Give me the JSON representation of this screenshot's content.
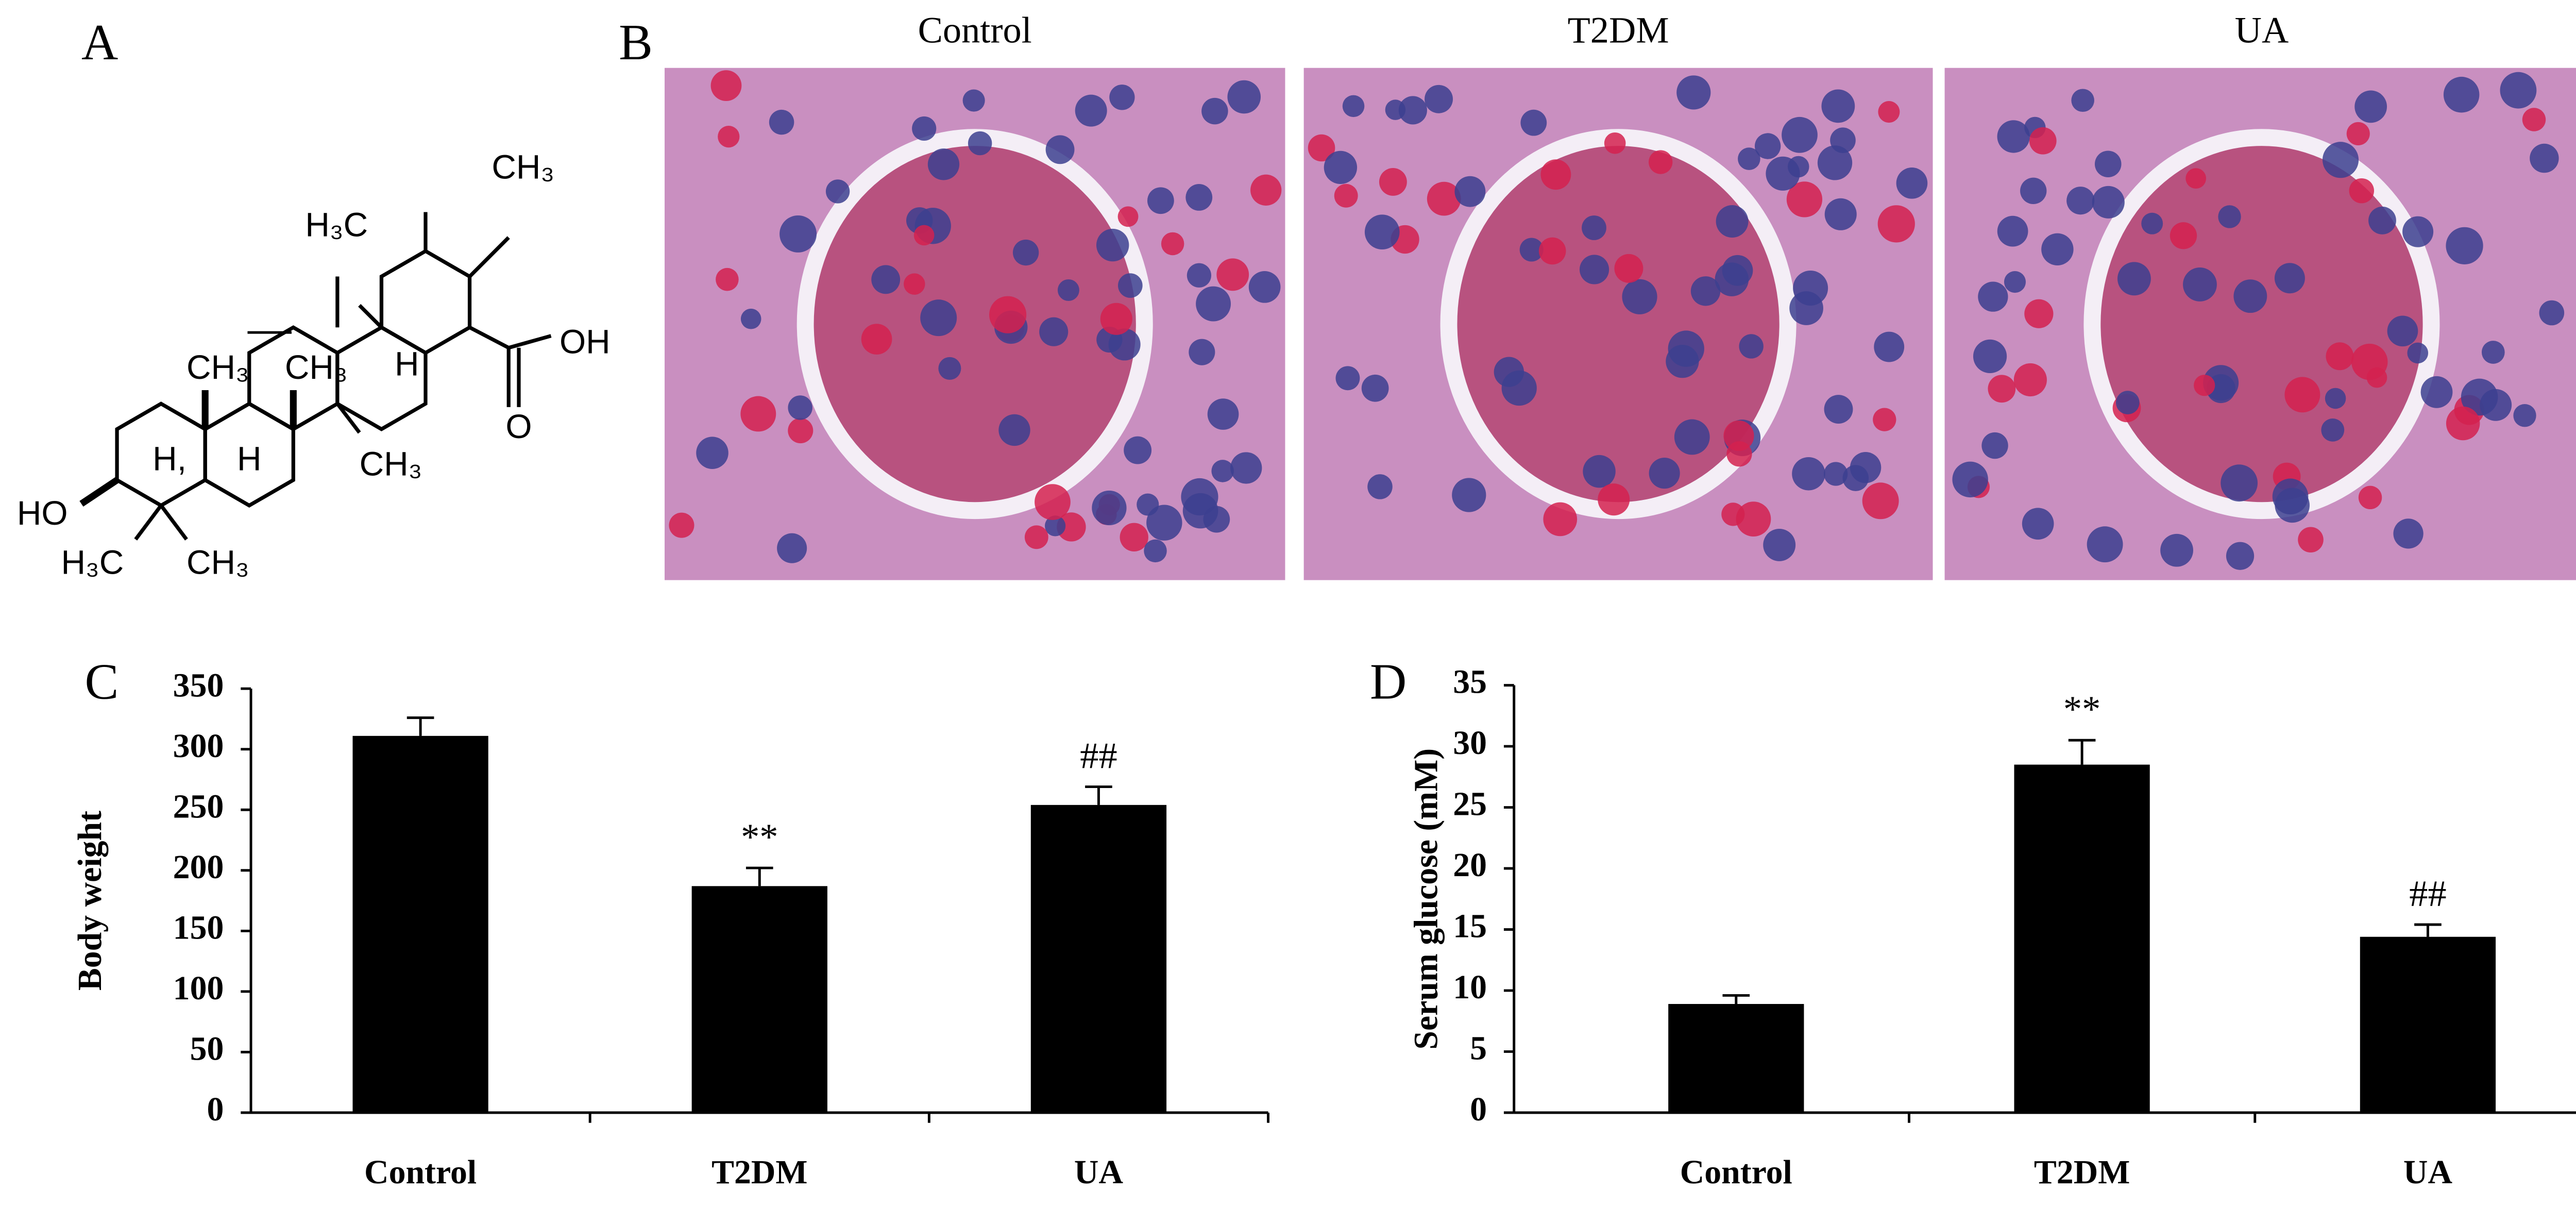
{
  "panels": {
    "A": {
      "letter": "A",
      "labels": [
        "CH₃",
        "H₃C",
        "H",
        "OH",
        "O",
        "CH₃",
        "CH₃",
        "H,",
        "H",
        "CH₃",
        "HO",
        "H₃C",
        "CH₃"
      ]
    },
    "B": {
      "letter": "B",
      "images": [
        {
          "title": "Control"
        },
        {
          "title": "T2DM"
        },
        {
          "title": "UA"
        }
      ]
    }
  },
  "chart_data": [
    {
      "type": "bar",
      "panel_label": "C",
      "y_label": "Body weight",
      "categories": [
        "Control",
        "T2DM",
        "UA"
      ],
      "values": [
        311,
        187,
        254
      ],
      "errors": [
        15,
        15,
        15
      ],
      "color": "#000000",
      "ylim": [
        0,
        350
      ],
      "yticks": [
        0,
        50,
        100,
        150,
        200,
        250,
        300,
        350
      ],
      "annotations": [
        {
          "category": "T2DM",
          "text": "**"
        },
        {
          "category": "UA",
          "text": "##"
        }
      ]
    },
    {
      "type": "bar",
      "panel_label": "D",
      "y_label": "Serum glucose (mM)",
      "categories": [
        "Control",
        "T2DM",
        "UA"
      ],
      "values": [
        8.9,
        28.5,
        14.4
      ],
      "errors": [
        0.7,
        2.0,
        1.0
      ],
      "color": "#000000",
      "ylim": [
        0,
        35
      ],
      "yticks": [
        0,
        5,
        10,
        15,
        20,
        25,
        30,
        35
      ],
      "annotations": [
        {
          "category": "T2DM",
          "text": "**"
        },
        {
          "category": "UA",
          "text": "##"
        }
      ]
    }
  ]
}
